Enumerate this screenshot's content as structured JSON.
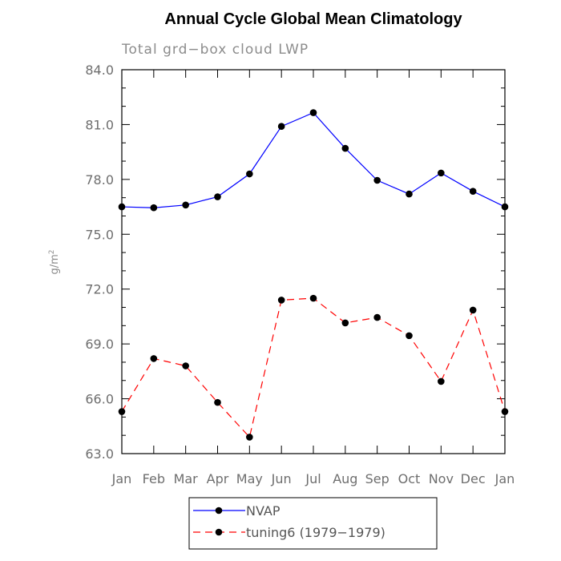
{
  "chart_data": {
    "type": "line",
    "title": "Annual Cycle Global Mean Climatology",
    "subtitle": "Total grd−box cloud LWP",
    "ylabel_base": "g/m",
    "ylabel_sup": "2",
    "xlabel": "",
    "categories": [
      "Jan",
      "Feb",
      "Mar",
      "Apr",
      "May",
      "Jun",
      "Jul",
      "Aug",
      "Sep",
      "Oct",
      "Nov",
      "Dec",
      "Jan"
    ],
    "ylim": [
      63.0,
      84.0
    ],
    "yticks": [
      "63.0",
      "66.0",
      "69.0",
      "72.0",
      "75.0",
      "78.0",
      "81.0",
      "84.0"
    ],
    "grid": false,
    "legend_position": "bottom",
    "series": [
      {
        "name": "NVAP",
        "color": "#0000ff",
        "dash": "solid",
        "values": [
          76.5,
          76.45,
          76.6,
          77.05,
          78.3,
          80.9,
          81.65,
          79.7,
          77.95,
          77.2,
          78.35,
          77.35,
          76.5
        ]
      },
      {
        "name": "tuning6 (1979−1979)",
        "color": "#ff0000",
        "dash": "dashed",
        "values": [
          65.3,
          68.2,
          67.8,
          65.8,
          63.9,
          71.4,
          71.5,
          70.15,
          70.45,
          69.45,
          66.95,
          70.85,
          65.3
        ]
      }
    ]
  }
}
